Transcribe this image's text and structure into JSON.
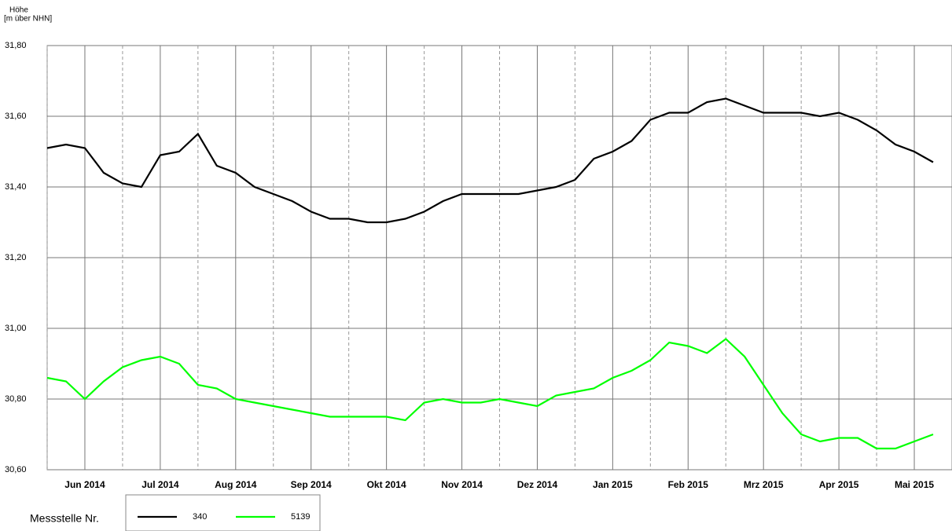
{
  "chart_data": {
    "type": "line",
    "y_label_lines": [
      "Höhe",
      "[m über NHN]"
    ],
    "legend_title": "Messstelle Nr.",
    "categories": [
      null,
      null,
      "Jun 2014",
      null,
      null,
      null,
      "Jul 2014",
      null,
      null,
      null,
      "Aug 2014",
      null,
      null,
      null,
      "Sep 2014",
      null,
      null,
      null,
      "Okt 2014",
      null,
      null,
      null,
      "Nov 2014",
      null,
      null,
      null,
      "Dez 2014",
      null,
      null,
      null,
      "Jan 2015",
      null,
      null,
      null,
      "Feb 2015",
      null,
      null,
      null,
      "Mrz 2015",
      null,
      null,
      null,
      "Apr 2015",
      null,
      null,
      null,
      "Mai 2015",
      null
    ],
    "series": [
      {
        "name": "340",
        "color": "#000000",
        "values": [
          31.51,
          31.52,
          31.51,
          31.44,
          31.41,
          31.4,
          31.49,
          31.5,
          31.55,
          31.46,
          31.44,
          31.4,
          31.38,
          31.36,
          31.33,
          31.31,
          31.31,
          31.3,
          31.3,
          31.31,
          31.33,
          31.36,
          31.38,
          31.38,
          31.38,
          31.38,
          31.39,
          31.4,
          31.42,
          31.48,
          31.5,
          31.53,
          31.59,
          31.61,
          31.61,
          31.64,
          31.65,
          31.63,
          31.61,
          31.61,
          31.61,
          31.6,
          31.61,
          31.59,
          31.56,
          31.52,
          31.5,
          31.47
        ]
      },
      {
        "name": "5139",
        "color": "#00ff00",
        "values": [
          30.86,
          30.85,
          30.8,
          30.85,
          30.89,
          30.91,
          30.92,
          30.9,
          30.84,
          30.83,
          30.8,
          30.79,
          30.78,
          30.77,
          30.76,
          30.75,
          30.75,
          30.75,
          30.75,
          30.74,
          30.79,
          30.8,
          30.79,
          30.79,
          30.8,
          30.79,
          30.78,
          30.81,
          30.82,
          30.83,
          30.86,
          30.88,
          30.91,
          30.96,
          30.95,
          30.93,
          30.97,
          30.92,
          30.84,
          30.76,
          30.7,
          30.68,
          30.69,
          30.69,
          30.66,
          30.66,
          30.68,
          30.7
        ]
      }
    ],
    "ylim": [
      30.6,
      31.8
    ],
    "yticks": [
      {
        "value": 30.6,
        "label": "30,60"
      },
      {
        "value": 30.8,
        "label": "30,80"
      },
      {
        "value": 31.0,
        "label": "31,00"
      },
      {
        "value": 31.2,
        "label": "31,20"
      },
      {
        "value": 31.4,
        "label": "31,40"
      },
      {
        "value": 31.6,
        "label": "31,60"
      },
      {
        "value": 31.8,
        "label": "31,80"
      }
    ],
    "grid": true
  }
}
